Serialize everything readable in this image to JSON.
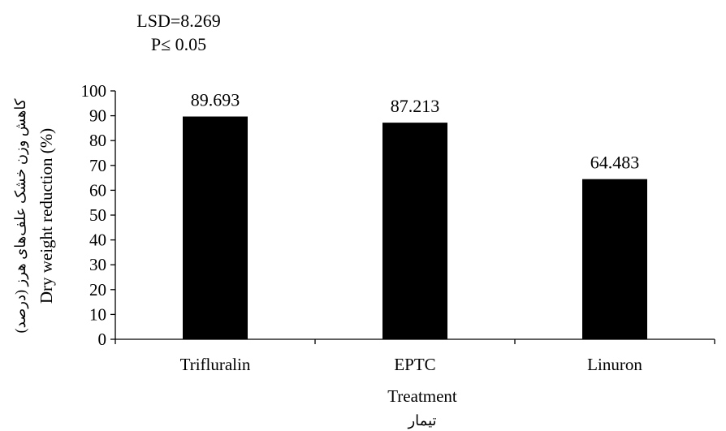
{
  "chart_data": {
    "type": "bar",
    "categories": [
      "Trifluralin",
      "EPTC",
      "Linuron"
    ],
    "values": [
      89.693,
      87.213,
      64.483
    ],
    "data_labels": [
      "89.693",
      "87.213",
      "64.483"
    ],
    "annotation": {
      "line1": "LSD=8.269",
      "line2": "P≤ 0.05"
    },
    "xlabel": "Treatment",
    "xlabel_fa": "تیمار",
    "ylabel": "Dry weight reduction (%)",
    "ylabel_fa": "کاهش وزن خشک علف‌های هرز (درصد)",
    "ylim": [
      0,
      100
    ],
    "yticks": [
      0,
      10,
      20,
      30,
      40,
      50,
      60,
      70,
      80,
      90,
      100
    ],
    "ytick_labels": [
      "0",
      "10",
      "20",
      "30",
      "40",
      "50",
      "60",
      "70",
      "80",
      "90",
      "100"
    ],
    "bar_color": "#000000",
    "grid": false,
    "legend": "none"
  }
}
